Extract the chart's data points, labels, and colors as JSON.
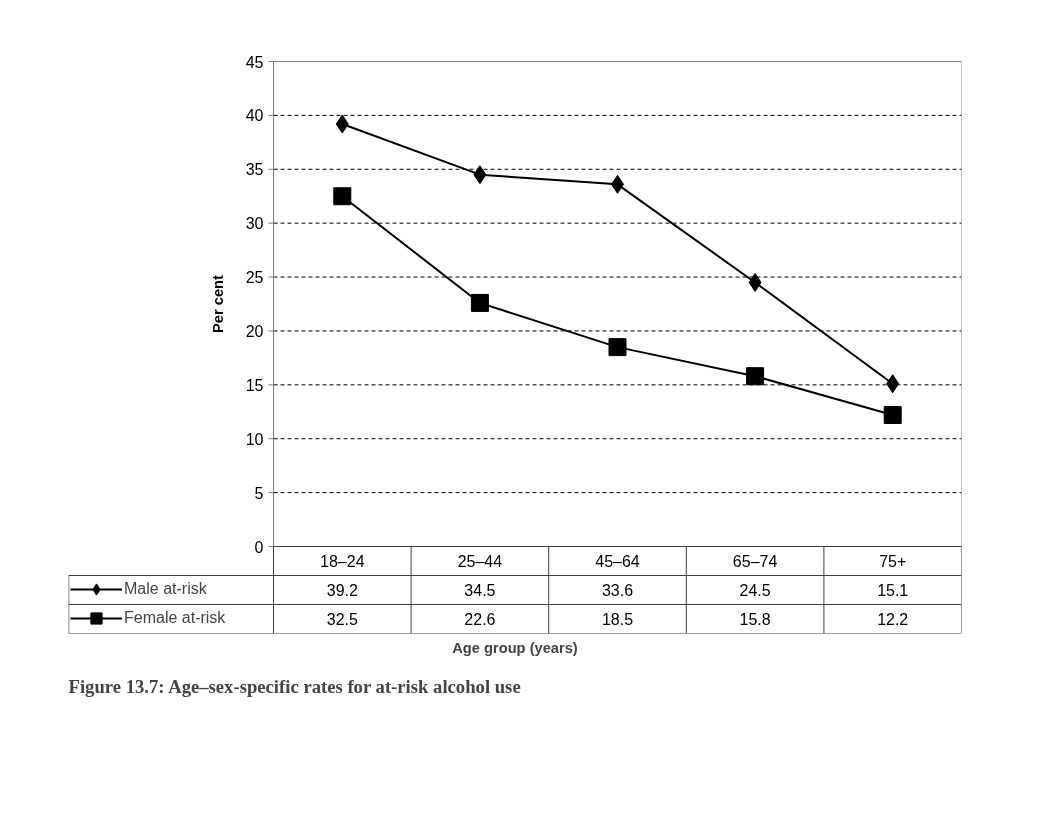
{
  "chart_data": {
    "type": "line",
    "title": "Figure 13.7: Age–sex-specific rates for at-risk alcohol use",
    "xlabel": "Age group (years)",
    "ylabel": "Per cent",
    "categories": [
      "18–24",
      "25–44",
      "45–64",
      "65–74",
      "75+"
    ],
    "series": [
      {
        "name": "Male at-risk",
        "color": "#000000",
        "marker": "diamond",
        "values": [
          39.2,
          34.5,
          33.6,
          24.5,
          15.1
        ]
      },
      {
        "name": "Female at-risk",
        "color": "#000000",
        "marker": "square",
        "values": [
          32.5,
          22.6,
          18.5,
          15.8,
          12.2
        ]
      }
    ],
    "ylim": [
      0,
      45
    ],
    "yticks": [
      0,
      5,
      10,
      15,
      20,
      25,
      30,
      35,
      40,
      45
    ],
    "grid": "y",
    "legend": "bottom",
    "data_labels": true,
    "line_style": "solid"
  }
}
